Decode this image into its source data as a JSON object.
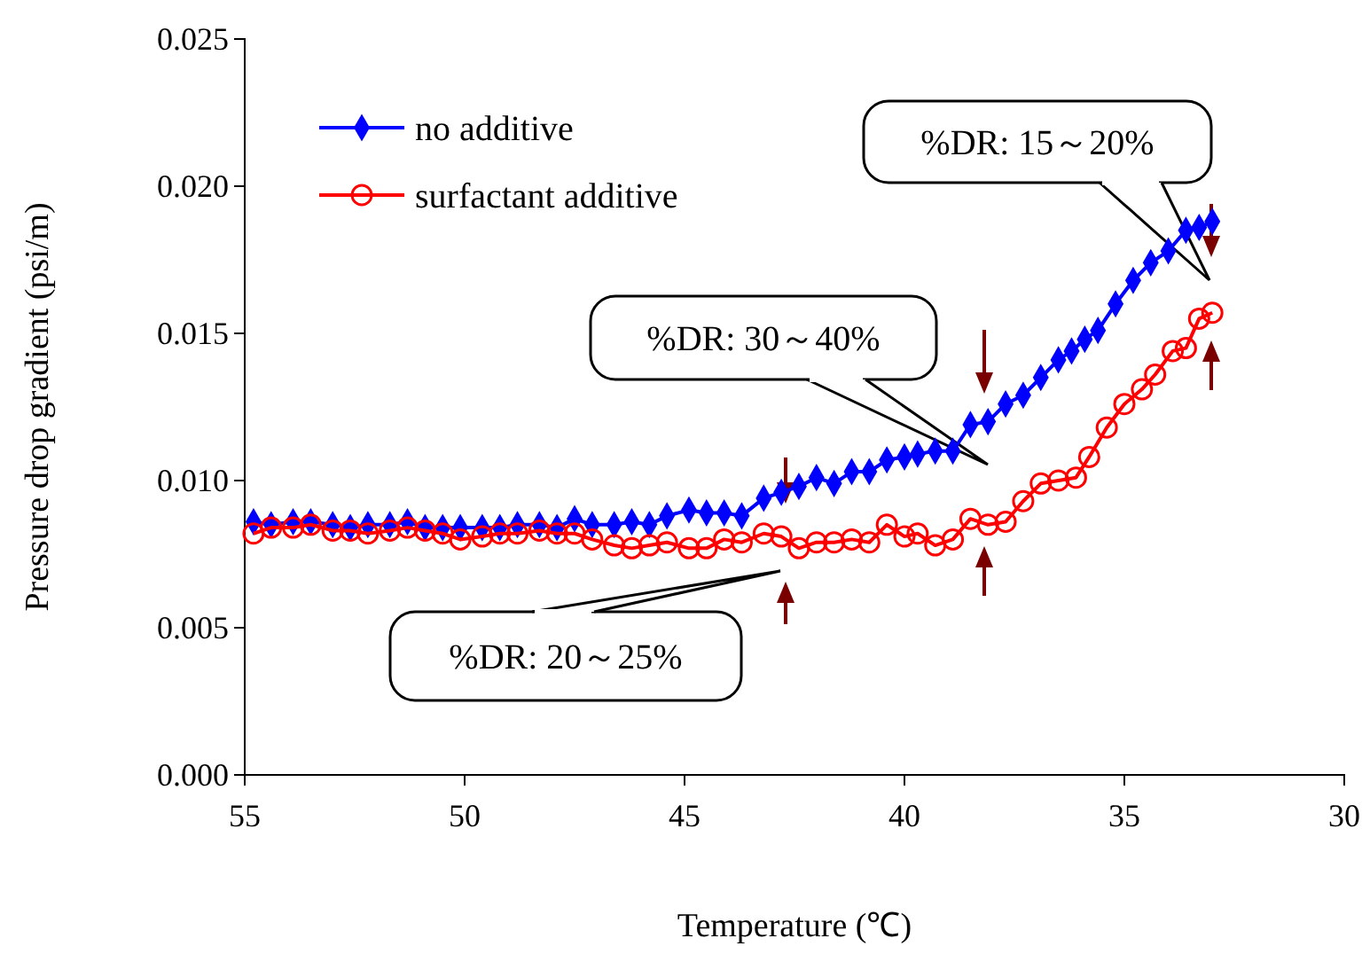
{
  "chart_data": {
    "type": "line",
    "xlabel": "Temperature (℃)",
    "ylabel": "Pressure drop gradient (psi/m)",
    "xlim": [
      55,
      30
    ],
    "xticks": [
      55,
      50,
      45,
      40,
      35,
      30
    ],
    "ylim": [
      0,
      0.025
    ],
    "yticks": [
      {
        "value": 0,
        "label": "0.000"
      },
      {
        "value": 0.005,
        "label": "0.005"
      },
      {
        "value": 0.01,
        "label": "0.010"
      },
      {
        "value": 0.015,
        "label": "0.015"
      },
      {
        "value": 0.02,
        "label": "0.020"
      },
      {
        "value": 0.025,
        "label": "0.025"
      }
    ],
    "grid": false,
    "legend": "top left",
    "annotations": [
      "%DR: 20～25%",
      "%DR: 30～40%",
      "%DR: 15～20%"
    ],
    "series": [
      {
        "name": "no additive",
        "color": "#0000ff",
        "marker": "diamond",
        "x": [
          54.8,
          54.4,
          53.9,
          53.5,
          53.0,
          52.6,
          52.2,
          51.7,
          51.3,
          50.9,
          50.5,
          50.1,
          49.6,
          49.2,
          48.8,
          48.3,
          47.9,
          47.5,
          47.1,
          46.6,
          46.2,
          45.8,
          45.4,
          44.9,
          44.5,
          44.1,
          43.7,
          43.2,
          42.8,
          42.4,
          42.0,
          41.6,
          41.2,
          40.8,
          40.4,
          40.0,
          39.7,
          39.3,
          38.9,
          38.5,
          38.1,
          37.7,
          37.3,
          36.9,
          36.5,
          36.2,
          35.9,
          35.6,
          35.2,
          34.8,
          34.4,
          34.0,
          33.6,
          33.3,
          33.0
        ],
        "values": [
          0.0086,
          0.0085,
          0.0086,
          0.0086,
          0.0085,
          0.0084,
          0.0085,
          0.0085,
          0.0086,
          0.0084,
          0.0084,
          0.0084,
          0.0084,
          0.0084,
          0.0085,
          0.0085,
          0.0084,
          0.0087,
          0.0085,
          0.0085,
          0.0086,
          0.0085,
          0.0088,
          0.009,
          0.0089,
          0.0089,
          0.0088,
          0.0094,
          0.0096,
          0.0098,
          0.0101,
          0.0099,
          0.0103,
          0.0103,
          0.0107,
          0.0108,
          0.0109,
          0.011,
          0.011,
          0.0119,
          0.012,
          0.0126,
          0.0129,
          0.0135,
          0.0141,
          0.0144,
          0.0148,
          0.0151,
          0.016,
          0.0168,
          0.0174,
          0.0178,
          0.0185,
          0.0186,
          0.0188
        ]
      },
      {
        "name": "surfactant additive",
        "color": "#ff0000",
        "marker": "circle",
        "x": [
          54.8,
          54.4,
          53.9,
          53.5,
          53.0,
          52.6,
          52.2,
          51.7,
          51.3,
          50.9,
          50.5,
          50.1,
          49.6,
          49.2,
          48.8,
          48.3,
          47.9,
          47.5,
          47.1,
          46.6,
          46.2,
          45.8,
          45.4,
          44.9,
          44.5,
          44.1,
          43.7,
          43.2,
          42.8,
          42.4,
          42.0,
          41.6,
          41.2,
          40.8,
          40.4,
          40.0,
          39.7,
          39.3,
          38.9,
          38.5,
          38.1,
          37.7,
          37.3,
          36.9,
          36.5,
          36.1,
          35.8,
          35.4,
          35.0,
          34.6,
          34.3,
          33.9,
          33.6,
          33.3,
          33.0
        ],
        "values": [
          0.0082,
          0.0084,
          0.0084,
          0.0085,
          0.0083,
          0.0083,
          0.0082,
          0.0083,
          0.0084,
          0.0083,
          0.0082,
          0.008,
          0.0081,
          0.0082,
          0.0082,
          0.0083,
          0.0082,
          0.0082,
          0.008,
          0.0078,
          0.0077,
          0.0078,
          0.0079,
          0.0077,
          0.0077,
          0.008,
          0.0079,
          0.0082,
          0.0081,
          0.0077,
          0.0079,
          0.0079,
          0.008,
          0.0079,
          0.0085,
          0.0081,
          0.0082,
          0.0078,
          0.008,
          0.0087,
          0.0085,
          0.0086,
          0.0093,
          0.0099,
          0.01,
          0.0101,
          0.0108,
          0.0118,
          0.0126,
          0.0131,
          0.0136,
          0.0144,
          0.0145,
          0.0155,
          0.0157
        ]
      }
    ]
  }
}
